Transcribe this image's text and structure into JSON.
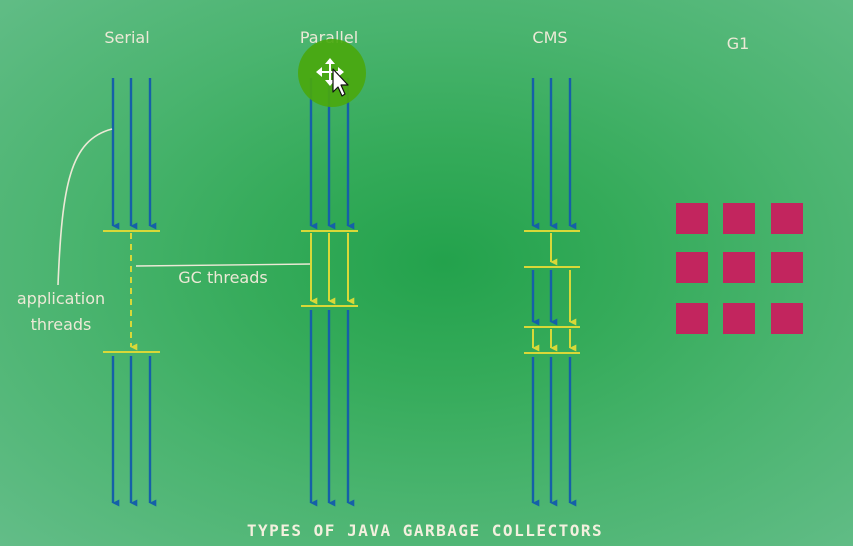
{
  "title": "Types of Java Garbage Collectors",
  "collectors": [
    {
      "name": "Serial"
    },
    {
      "name": "Parallel"
    },
    {
      "name": "CMS"
    },
    {
      "name": "G1"
    }
  ],
  "annotations": {
    "application_threads": [
      "application",
      "threads"
    ],
    "gc_threads": "GC threads"
  },
  "colors": {
    "app_thread": "#1560a8",
    "gc_thread": "#d8d838",
    "region": "#c2255e",
    "label": "#ece9d6",
    "cursor_highlight": "#4aa80e"
  },
  "cursor": {
    "icon": "move-cursor-icon"
  }
}
